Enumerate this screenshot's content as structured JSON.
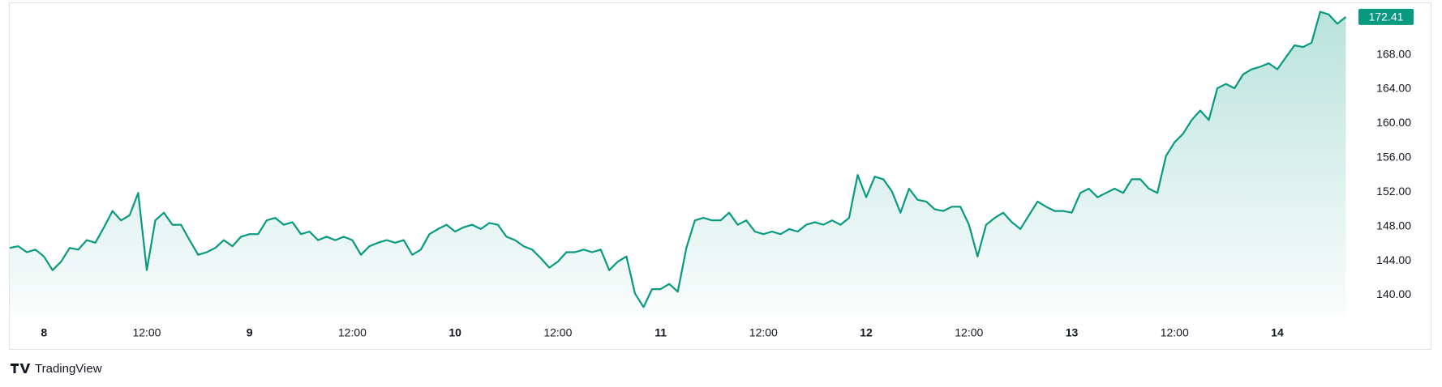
{
  "chart_data": {
    "type": "area",
    "color": "#089981",
    "grid": false,
    "x": [
      -4,
      -3,
      -2,
      -1,
      0,
      1,
      2,
      3,
      4,
      5,
      6,
      7,
      8,
      9,
      10,
      11,
      12,
      13,
      14,
      15,
      16,
      17,
      18,
      19,
      20,
      21,
      22,
      23,
      24,
      25,
      26,
      27,
      28,
      29,
      30,
      31,
      32,
      33,
      34,
      35,
      36,
      37,
      38,
      39,
      40,
      41,
      42,
      43,
      44,
      45,
      46,
      47,
      48,
      49,
      50,
      51,
      52,
      53,
      54,
      55,
      56,
      57,
      58,
      59,
      60,
      61,
      62,
      63,
      64,
      65,
      66,
      67,
      68,
      69,
      70,
      71,
      72,
      73,
      74,
      75,
      76,
      77,
      78,
      79,
      80,
      81,
      82,
      83,
      84,
      85,
      86,
      87,
      88,
      89,
      90,
      91,
      92,
      93,
      94,
      95,
      96,
      97,
      98,
      99,
      100,
      101,
      102,
      103,
      104,
      105,
      106,
      107,
      108,
      109,
      110,
      111,
      112,
      113,
      114,
      115,
      116,
      117,
      118,
      119,
      120,
      121,
      122,
      123,
      124,
      125,
      126,
      127,
      128,
      129,
      130,
      131,
      132,
      133,
      134,
      135,
      136,
      137,
      138,
      139,
      140,
      141,
      142,
      143,
      144,
      145,
      146,
      147,
      148,
      149,
      150,
      151,
      152
    ],
    "values": [
      145.5,
      145.7,
      145.0,
      145.3,
      144.5,
      142.9,
      143.9,
      145.5,
      145.3,
      146.4,
      146.1,
      147.9,
      149.8,
      148.7,
      149.3,
      151.9,
      142.9,
      148.7,
      149.6,
      148.2,
      148.2,
      146.4,
      144.7,
      145.0,
      145.5,
      146.4,
      145.7,
      146.8,
      147.1,
      147.1,
      148.7,
      149.0,
      148.2,
      148.5,
      147.1,
      147.4,
      146.4,
      146.8,
      146.4,
      146.8,
      146.4,
      144.7,
      145.7,
      146.1,
      146.4,
      146.1,
      146.4,
      144.7,
      145.3,
      147.1,
      147.7,
      148.2,
      147.4,
      147.9,
      148.2,
      147.7,
      148.4,
      148.2,
      146.8,
      146.4,
      145.7,
      145.3,
      144.3,
      143.2,
      143.9,
      145.0,
      145.0,
      145.3,
      145.0,
      145.3,
      142.9,
      143.9,
      144.5,
      140.2,
      138.6,
      140.7,
      140.7,
      141.3,
      140.4,
      145.5,
      148.7,
      149.0,
      148.7,
      148.7,
      149.6,
      148.2,
      148.7,
      147.4,
      147.1,
      147.4,
      147.1,
      147.7,
      147.4,
      148.2,
      148.5,
      148.2,
      148.7,
      148.2,
      149.0,
      154.0,
      151.4,
      153.8,
      153.5,
      152.1,
      149.6,
      152.4,
      151.1,
      150.9,
      150.0,
      149.8,
      150.3,
      150.3,
      148.2,
      144.5,
      148.2,
      149.0,
      149.6,
      148.5,
      147.7,
      149.3,
      150.9,
      150.3,
      149.8,
      149.8,
      149.6,
      151.9,
      152.4,
      151.4,
      151.9,
      152.4,
      151.9,
      153.5,
      153.5,
      152.4,
      151.9,
      156.2,
      157.8,
      158.8,
      160.4,
      161.5,
      160.4,
      164.1,
      164.6,
      164.1,
      165.7,
      166.3,
      166.6,
      167.0,
      166.3,
      167.7,
      169.1,
      168.9,
      169.4,
      173.0,
      172.7,
      171.6,
      172.41
    ],
    "xlim": [
      -4,
      153
    ],
    "xticks": [
      {
        "value": 0,
        "label": "8"
      },
      {
        "value": 12,
        "label": "12:00"
      },
      {
        "value": 24,
        "label": "9"
      },
      {
        "value": 36,
        "label": "12:00"
      },
      {
        "value": 48,
        "label": "10"
      },
      {
        "value": 60,
        "label": "12:00"
      },
      {
        "value": 72,
        "label": "11"
      },
      {
        "value": 84,
        "label": "12:00"
      },
      {
        "value": 96,
        "label": "12"
      },
      {
        "value": 108,
        "label": "12:00"
      },
      {
        "value": 120,
        "label": "13"
      },
      {
        "value": 132,
        "label": "12:00"
      },
      {
        "value": 144,
        "label": "14"
      }
    ],
    "ylim": [
      137.5,
      174
    ],
    "yticks": [
      {
        "value": 140,
        "label": "140.00"
      },
      {
        "value": 144,
        "label": "144.00"
      },
      {
        "value": 148,
        "label": "148.00"
      },
      {
        "value": 152,
        "label": "152.00"
      },
      {
        "value": 156,
        "label": "156.00"
      },
      {
        "value": 160,
        "label": "160.00"
      },
      {
        "value": 164,
        "label": "164.00"
      },
      {
        "value": 168,
        "label": "168.00"
      }
    ]
  },
  "brand": "TradingView"
}
